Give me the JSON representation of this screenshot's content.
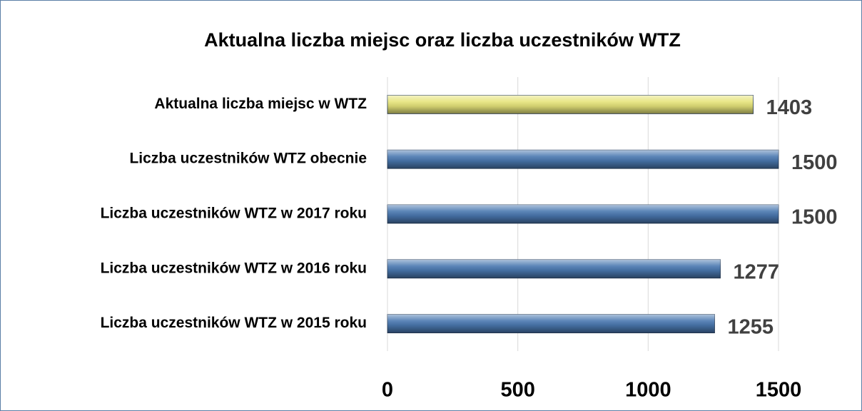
{
  "chart_data": {
    "type": "bar",
    "orientation": "horizontal",
    "title": "Aktualna liczba miejsc oraz liczba uczestników WTZ",
    "categories": [
      "Aktualna liczba miejsc w WTZ",
      "Liczba uczestników WTZ obecnie",
      "Liczba uczestników WTZ w 2017 roku",
      "Liczba uczestników WTZ w 2016 roku",
      "Liczba uczestników WTZ w 2015 roku"
    ],
    "values": [
      1403,
      1500,
      1500,
      1277,
      1255
    ],
    "colors": [
      "#e6e47a",
      "#4a78b0",
      "#4a78b0",
      "#4a78b0",
      "#4a78b0"
    ],
    "xlim": [
      0,
      1500
    ],
    "xticks": [
      0,
      500,
      1000,
      1500
    ],
    "grid": true
  }
}
